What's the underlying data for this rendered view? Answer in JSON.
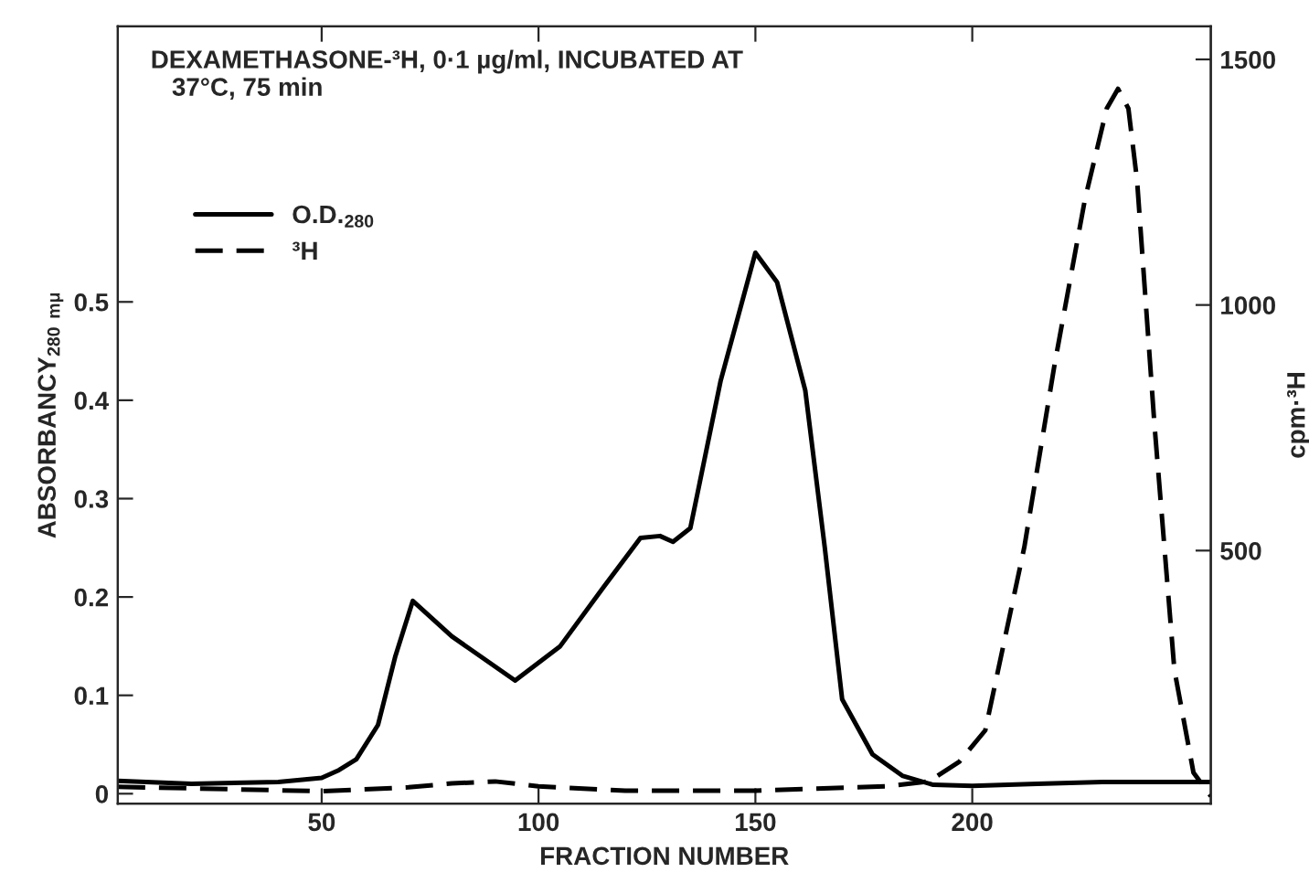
{
  "chart_data": {
    "type": "line",
    "annotations": [
      "DEXAMETHASONE-³H, 0·1 µg/ml, INCUBATED AT\n   37°C, 75 min"
    ],
    "xlabel": "FRACTION NUMBER",
    "ylabel": "ABSORBANCY$_{280 mμ}$",
    "y2label": "cpm·³H",
    "xlim": [
      3,
      255
    ],
    "xticks": [
      50,
      100,
      150,
      200
    ],
    "ylim": [
      -0.01,
      0.78
    ],
    "yticks": [
      0,
      0.1,
      0.2,
      0.3,
      0.4,
      0.5
    ],
    "y2lim": [
      -15,
      1567
    ],
    "y2ticks": [
      500,
      1000,
      1500
    ],
    "legend": "top left",
    "grid": false,
    "series": [
      {
        "name": "O.D.$_{280}$",
        "color": "#000000",
        "line_style": "solid",
        "x": [
          3,
          20,
          40,
          50,
          54,
          58,
          63,
          67,
          71,
          80,
          94.6,
          105,
          115,
          123.5,
          128,
          131,
          135,
          142,
          150,
          155,
          161.5,
          166,
          170,
          177,
          184,
          191,
          200,
          215,
          230,
          255
        ],
        "values": [
          0.013,
          0.01,
          0.012,
          0.016,
          0.024,
          0.035,
          0.07,
          0.14,
          0.196,
          0.16,
          0.115,
          0.15,
          0.21,
          0.26,
          0.262,
          0.256,
          0.27,
          0.42,
          0.55,
          0.52,
          0.41,
          0.25,
          0.096,
          0.04,
          0.018,
          0.009,
          0.008,
          0.01,
          0.012,
          0.012
        ]
      },
      {
        "name": "³H",
        "color": "#000000",
        "line_style": "dashed",
        "axis": "y2",
        "x": [
          3,
          25,
          50,
          70,
          80,
          90,
          100,
          120,
          150,
          180,
          190,
          197,
          203,
          212,
          219,
          226,
          231,
          233.6,
          236,
          238,
          242,
          246.6,
          251,
          255
        ],
        "values": [
          19,
          15,
          10,
          18,
          26,
          30,
          20,
          11,
          11,
          20,
          30,
          70,
          134,
          507,
          880,
          1216,
          1400,
          1440,
          1400,
          1253,
          757,
          257,
          48,
          0
        ]
      }
    ]
  }
}
